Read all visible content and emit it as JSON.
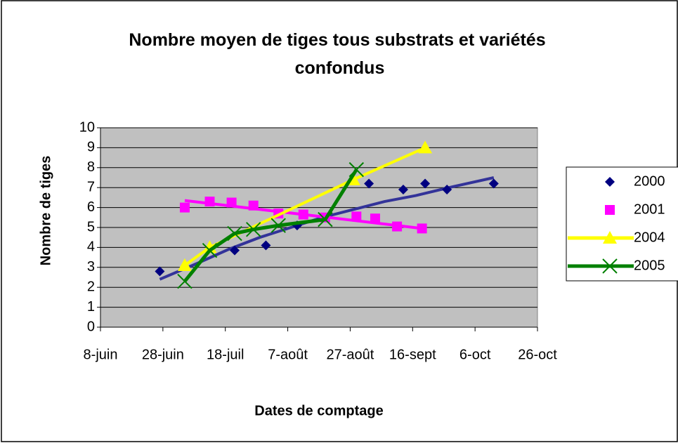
{
  "chart_data": {
    "type": "scatter",
    "title": "Nombre moyen de tiges tous substrats et variétés confondus",
    "x_label": "Dates de comptage",
    "y_label": "Nombre de tiges",
    "xlim": [
      159,
      299
    ],
    "xticks": [
      {
        "value": 159,
        "label": "8-juin"
      },
      {
        "value": 179,
        "label": "28-juin"
      },
      {
        "value": 199,
        "label": "18-juil"
      },
      {
        "value": 219,
        "label": "7-août"
      },
      {
        "value": 239,
        "label": "27-août"
      },
      {
        "value": 259,
        "label": "16-sept"
      },
      {
        "value": 279,
        "label": "6-oct"
      },
      {
        "value": 299,
        "label": "26-oct"
      }
    ],
    "ylim": [
      0,
      10
    ],
    "yticks": [
      0,
      1,
      2,
      3,
      4,
      5,
      6,
      7,
      8,
      9,
      10
    ],
    "grid": true,
    "legend": "right",
    "series": [
      {
        "name": "2000",
        "color": "#000080",
        "marker": "diamond",
        "line": false,
        "x": [
          178,
          202,
          212,
          222,
          245,
          256,
          263,
          270,
          285
        ],
        "values": [
          2.8,
          3.85,
          4.1,
          5.1,
          7.2,
          6.9,
          7.2,
          6.9,
          7.2
        ],
        "trendline": {
          "color": "#333399",
          "x": [
            178,
            190,
            200,
            210,
            220,
            230,
            240,
            250,
            260,
            272,
            285
          ],
          "values": [
            2.4,
            3.2,
            3.9,
            4.5,
            5.0,
            5.5,
            5.9,
            6.3,
            6.6,
            7.05,
            7.5
          ]
        }
      },
      {
        "name": "2001",
        "color": "#ff00ff",
        "marker": "square",
        "line": false,
        "x": [
          186,
          194,
          201,
          208,
          216,
          224,
          231,
          241,
          247,
          254,
          262
        ],
        "values": [
          6.0,
          6.3,
          6.25,
          6.1,
          5.7,
          5.65,
          5.5,
          5.55,
          5.45,
          5.05,
          4.95
        ],
        "trendline": {
          "color": "#ff00ff",
          "x": [
            186,
            262
          ],
          "values": [
            6.35,
            4.95
          ]
        }
      },
      {
        "name": "2004",
        "color": "#ffff00",
        "marker": "triangle",
        "line": true,
        "x": [
          186,
          194,
          240,
          263
        ],
        "values": [
          3.1,
          4.0,
          7.4,
          9.0
        ]
      },
      {
        "name": "2005",
        "color": "#008000",
        "marker": "x",
        "line": true,
        "x": [
          186,
          194,
          202,
          208,
          216,
          231,
          241
        ],
        "values": [
          2.3,
          3.85,
          4.7,
          4.9,
          5.1,
          5.4,
          7.9
        ]
      }
    ]
  }
}
